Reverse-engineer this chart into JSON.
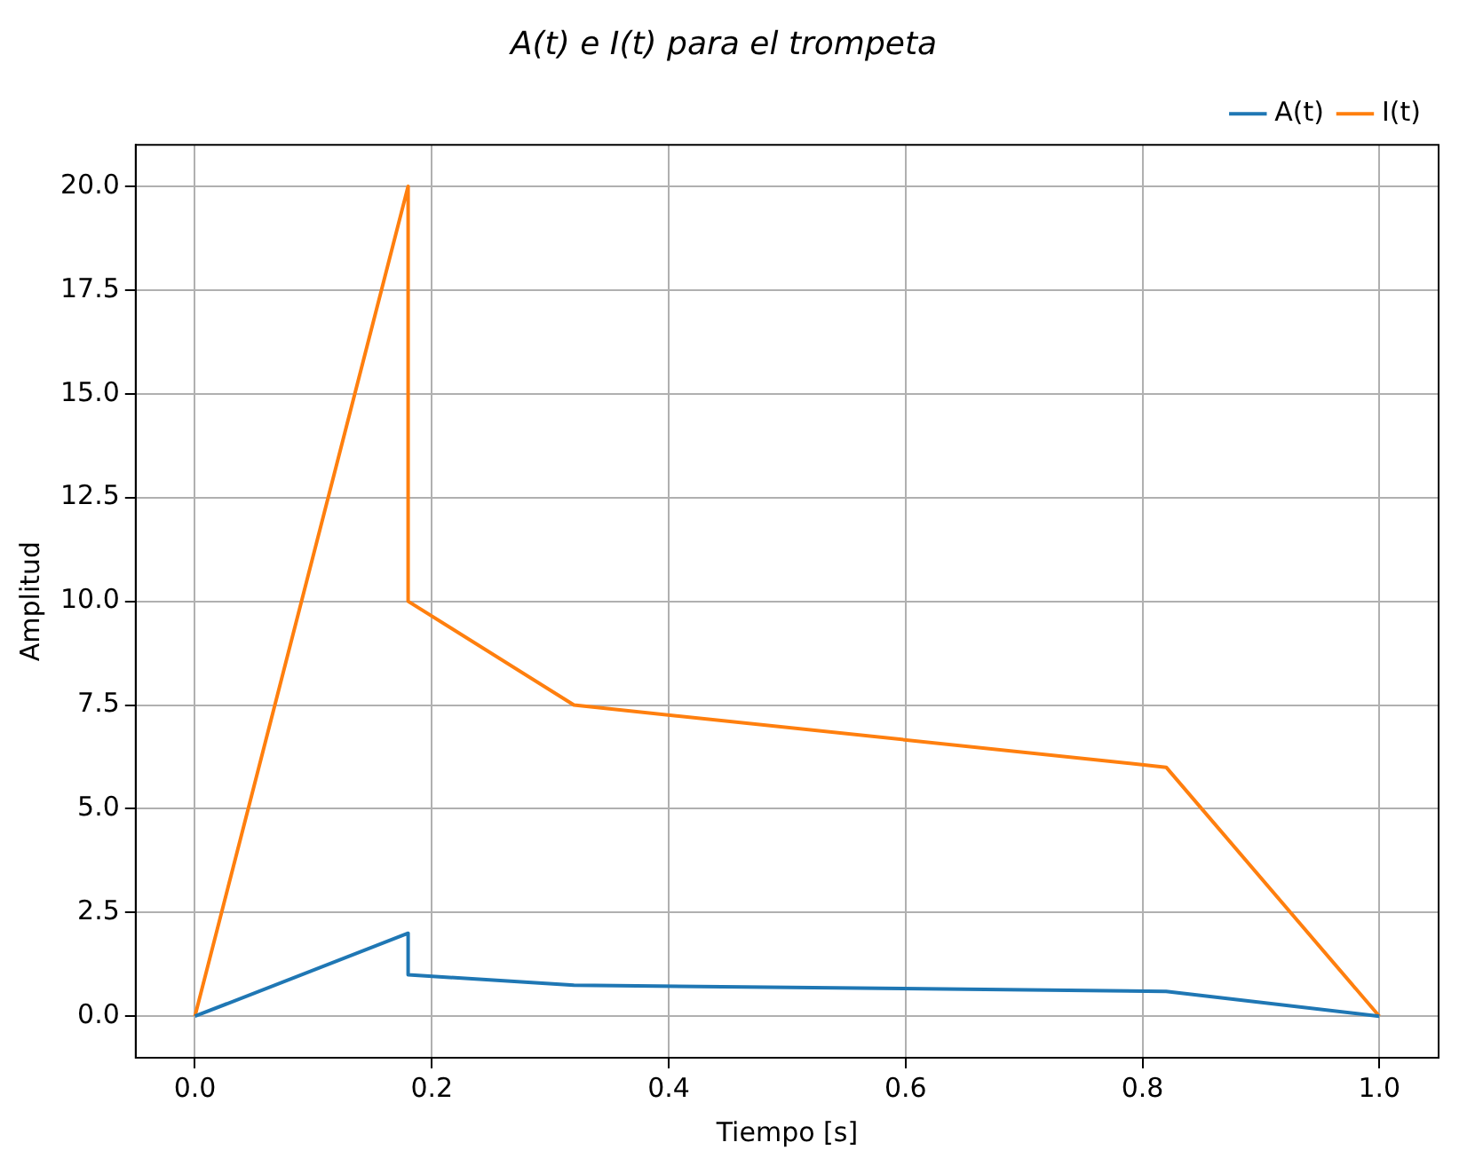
{
  "chart_data": {
    "type": "line",
    "title": "A(t) e I(t) para el trompeta",
    "xlabel": "Tiempo [s]",
    "ylabel": "Amplitud",
    "series": [
      {
        "name": "A(t)",
        "color": "#1f77b4",
        "x": [
          0,
          0.18,
          0.18,
          0.32,
          0.82,
          1.0
        ],
        "values": [
          0,
          2,
          1,
          0.75,
          0.6,
          0
        ]
      },
      {
        "name": "I(t)",
        "color": "#ff7f0e",
        "x": [
          0,
          0.18,
          0.18,
          0.32,
          0.82,
          1.0
        ],
        "values": [
          0,
          20,
          10,
          7.5,
          6,
          0
        ]
      }
    ],
    "xlim": [
      -0.05,
      1.05
    ],
    "xticks": [
      {
        "value": 0,
        "label": "0.0"
      },
      {
        "value": 0.2,
        "label": "0.2"
      },
      {
        "value": 0.4,
        "label": "0.4"
      },
      {
        "value": 0.6,
        "label": "0.6"
      },
      {
        "value": 0.8,
        "label": "0.8"
      },
      {
        "value": 1,
        "label": "1.0"
      }
    ],
    "ylim": [
      -1,
      21
    ],
    "yticks": [
      {
        "value": 0,
        "label": "0.0"
      },
      {
        "value": 2.5,
        "label": "2.5"
      },
      {
        "value": 5,
        "label": "5.0"
      },
      {
        "value": 7.5,
        "label": "7.5"
      },
      {
        "value": 10,
        "label": "10.0"
      },
      {
        "value": 12.5,
        "label": "12.5"
      },
      {
        "value": 15,
        "label": "15.0"
      },
      {
        "value": 17.5,
        "label": "17.5"
      },
      {
        "value": 20,
        "label": "20.0"
      }
    ],
    "grid": true,
    "legend": "top right",
    "marker": "none",
    "line_style": "solid"
  }
}
